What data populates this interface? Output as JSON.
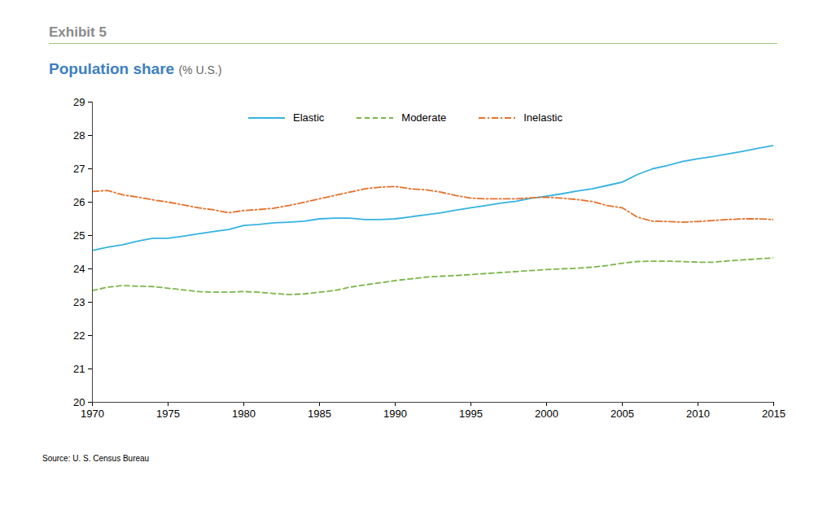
{
  "chart_data": {
    "type": "line",
    "label": "Exhibit 5",
    "title": "Population share",
    "subtitle": "(% U.S.)",
    "caption": "Source: U. S. Census Bureau",
    "x": [
      1970,
      1971,
      1972,
      1973,
      1974,
      1975,
      1976,
      1977,
      1978,
      1979,
      1980,
      1981,
      1982,
      1983,
      1984,
      1985,
      1986,
      1987,
      1988,
      1989,
      1990,
      1991,
      1992,
      1993,
      1994,
      1995,
      1996,
      1997,
      1998,
      1999,
      2000,
      2001,
      2002,
      2003,
      2004,
      2005,
      2006,
      2007,
      2008,
      2009,
      2010,
      2011,
      2012,
      2013,
      2014,
      2015
    ],
    "series": [
      {
        "name": "Elastic",
        "color": "#35b3e0",
        "line_style": "solid",
        "values": [
          24.55,
          24.65,
          24.72,
          24.83,
          24.92,
          24.92,
          24.98,
          25.05,
          25.12,
          25.18,
          25.3,
          25.33,
          25.38,
          25.4,
          25.43,
          25.5,
          25.52,
          25.52,
          25.48,
          25.48,
          25.5,
          25.56,
          25.62,
          25.68,
          25.76,
          25.83,
          25.9,
          25.97,
          26.03,
          26.12,
          26.18,
          26.25,
          26.33,
          26.4,
          26.5,
          26.6,
          26.83,
          27.0,
          27.1,
          27.22,
          27.3,
          27.37,
          27.45,
          27.53,
          27.62,
          27.7
        ]
      },
      {
        "name": "Moderate",
        "color": "#7ab648",
        "line_style": "dashed",
        "values": [
          23.35,
          23.45,
          23.5,
          23.48,
          23.47,
          23.42,
          23.37,
          23.32,
          23.3,
          23.3,
          23.32,
          23.3,
          23.26,
          23.23,
          23.25,
          23.3,
          23.35,
          23.45,
          23.52,
          23.58,
          23.65,
          23.7,
          23.75,
          23.78,
          23.8,
          23.83,
          23.86,
          23.89,
          23.92,
          23.95,
          23.98,
          24.0,
          24.02,
          24.05,
          24.1,
          24.17,
          24.22,
          24.23,
          24.23,
          24.22,
          24.2,
          24.2,
          24.24,
          24.27,
          24.3,
          24.33
        ]
      },
      {
        "name": "Inelastic",
        "color": "#e8702a",
        "line_style": "dashdot",
        "values": [
          26.32,
          26.35,
          26.22,
          26.15,
          26.07,
          26.0,
          25.92,
          25.83,
          25.77,
          25.68,
          25.75,
          25.78,
          25.82,
          25.9,
          26.0,
          26.1,
          26.2,
          26.3,
          26.4,
          26.45,
          26.47,
          26.4,
          26.37,
          26.3,
          26.2,
          26.12,
          26.1,
          26.1,
          26.1,
          26.13,
          26.15,
          26.12,
          26.08,
          26.02,
          25.9,
          25.83,
          25.55,
          25.43,
          25.42,
          25.4,
          25.42,
          25.45,
          25.48,
          25.5,
          25.5,
          25.48
        ]
      }
    ],
    "xlim": [
      1970,
      2015
    ],
    "xticks": [
      1970,
      1975,
      1980,
      1985,
      1990,
      1995,
      2000,
      2005,
      2010,
      2015
    ],
    "ylim": [
      20,
      29
    ],
    "yticks": [
      20,
      21,
      22,
      23,
      24,
      25,
      26,
      27,
      28,
      29
    ],
    "grid": false,
    "legend": "top"
  }
}
